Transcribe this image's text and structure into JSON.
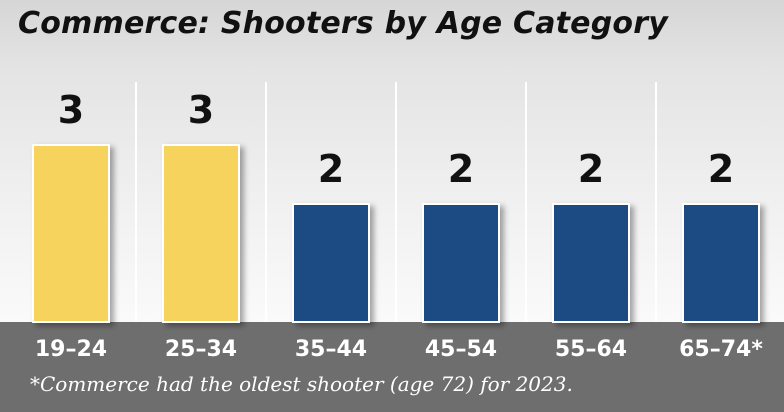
{
  "colors": {
    "highlight": "#f6d35b",
    "base": "#1f4c84",
    "band": "#6e6e6e",
    "text": "#111111",
    "tick": "#ffffff"
  },
  "chart_data": {
    "type": "bar",
    "title": "Commerce: Shooters by Age Category",
    "categories": [
      "19–24",
      "25–34",
      "35–44",
      "45–54",
      "55–64",
      "65–74*"
    ],
    "values": [
      3,
      3,
      2,
      2,
      2,
      2
    ],
    "bar_colors": [
      "#f6d35b",
      "#f6d35b",
      "#1f4c84",
      "#1f4c84",
      "#1f4c84",
      "#1f4c84"
    ],
    "ylim": [
      0,
      3
    ],
    "data_labels": true,
    "grid": false,
    "legend": "none",
    "footnote": "*Commerce had the oldest shooter (age 72) for 2023."
  }
}
